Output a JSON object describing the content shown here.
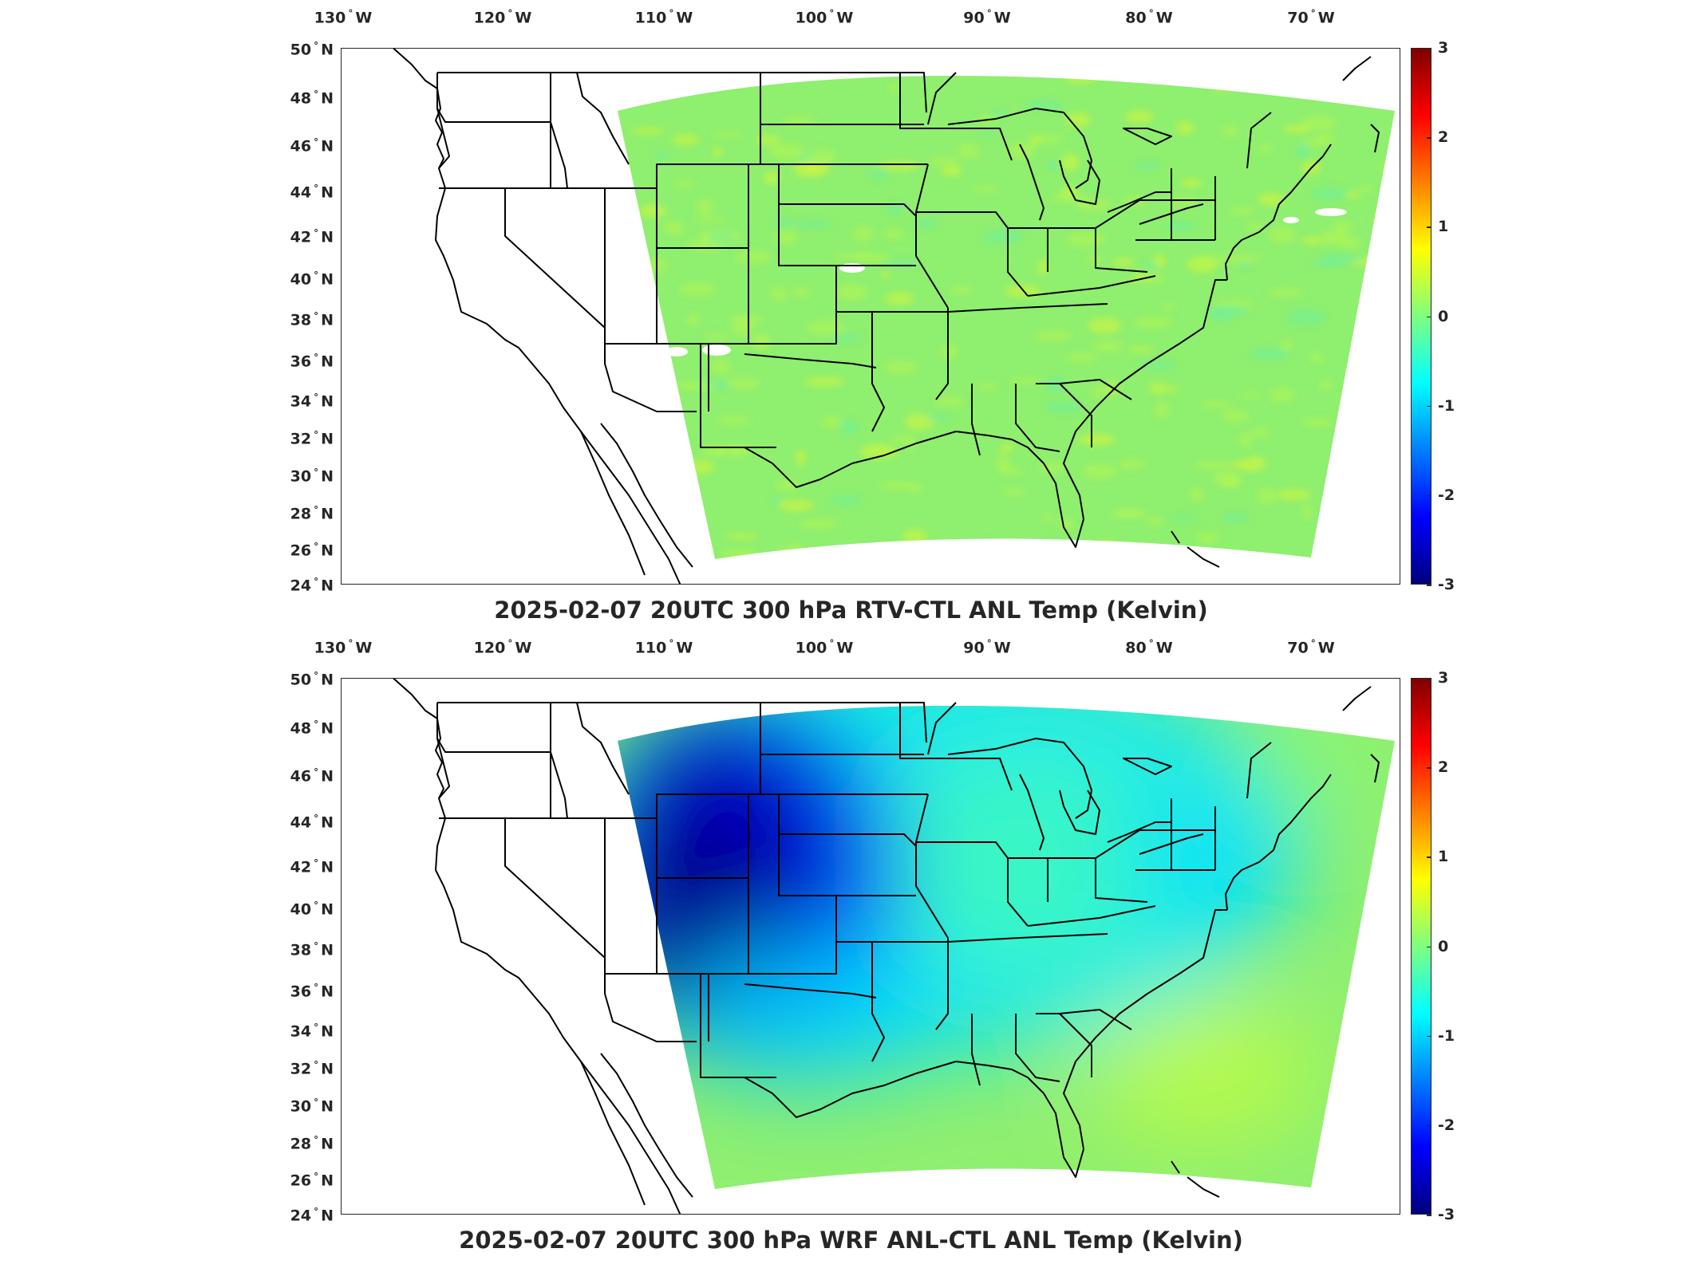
{
  "figure": {
    "lon_ticks": [
      "130",
      "120",
      "110",
      "100",
      "90",
      "80",
      "70"
    ],
    "lon_hemisphere": "W",
    "lat_ticks": [
      "50",
      "48",
      "46",
      "44",
      "42",
      "40",
      "38",
      "36",
      "34",
      "32",
      "30",
      "28",
      "26",
      "24"
    ],
    "lat_hemisphere": "N",
    "colorbar": {
      "ticks": [
        "3",
        "2",
        "1",
        "0",
        "-1",
        "-2",
        "-3"
      ],
      "range": [
        -3,
        3
      ],
      "colormap": "jet",
      "colors": [
        "#00007f",
        "#0000ff",
        "#007fff",
        "#00ffff",
        "#7fff7f",
        "#ffff00",
        "#ff7f00",
        "#ff0000",
        "#7f0000"
      ]
    }
  },
  "panels": [
    {
      "title": "2025-02-07 20UTC 300 hPa RTV-CTL ANL Temp (Kelvin)",
      "field_summary": "near-uniform values around 0 with slight positive noise",
      "base_color": "#8fef6f",
      "cold_anomaly_strength": 0
    },
    {
      "title": "2025-02-07 20UTC 300 hPa WRF ANL-CTL ANL Temp (Kelvin)",
      "field_summary": "strong negative anomaly near -3 over Wyoming/Colorado/New Mexico, near 0 over the east",
      "base_color": "#8fef6f",
      "cold_anomaly_strength": 1
    }
  ]
}
